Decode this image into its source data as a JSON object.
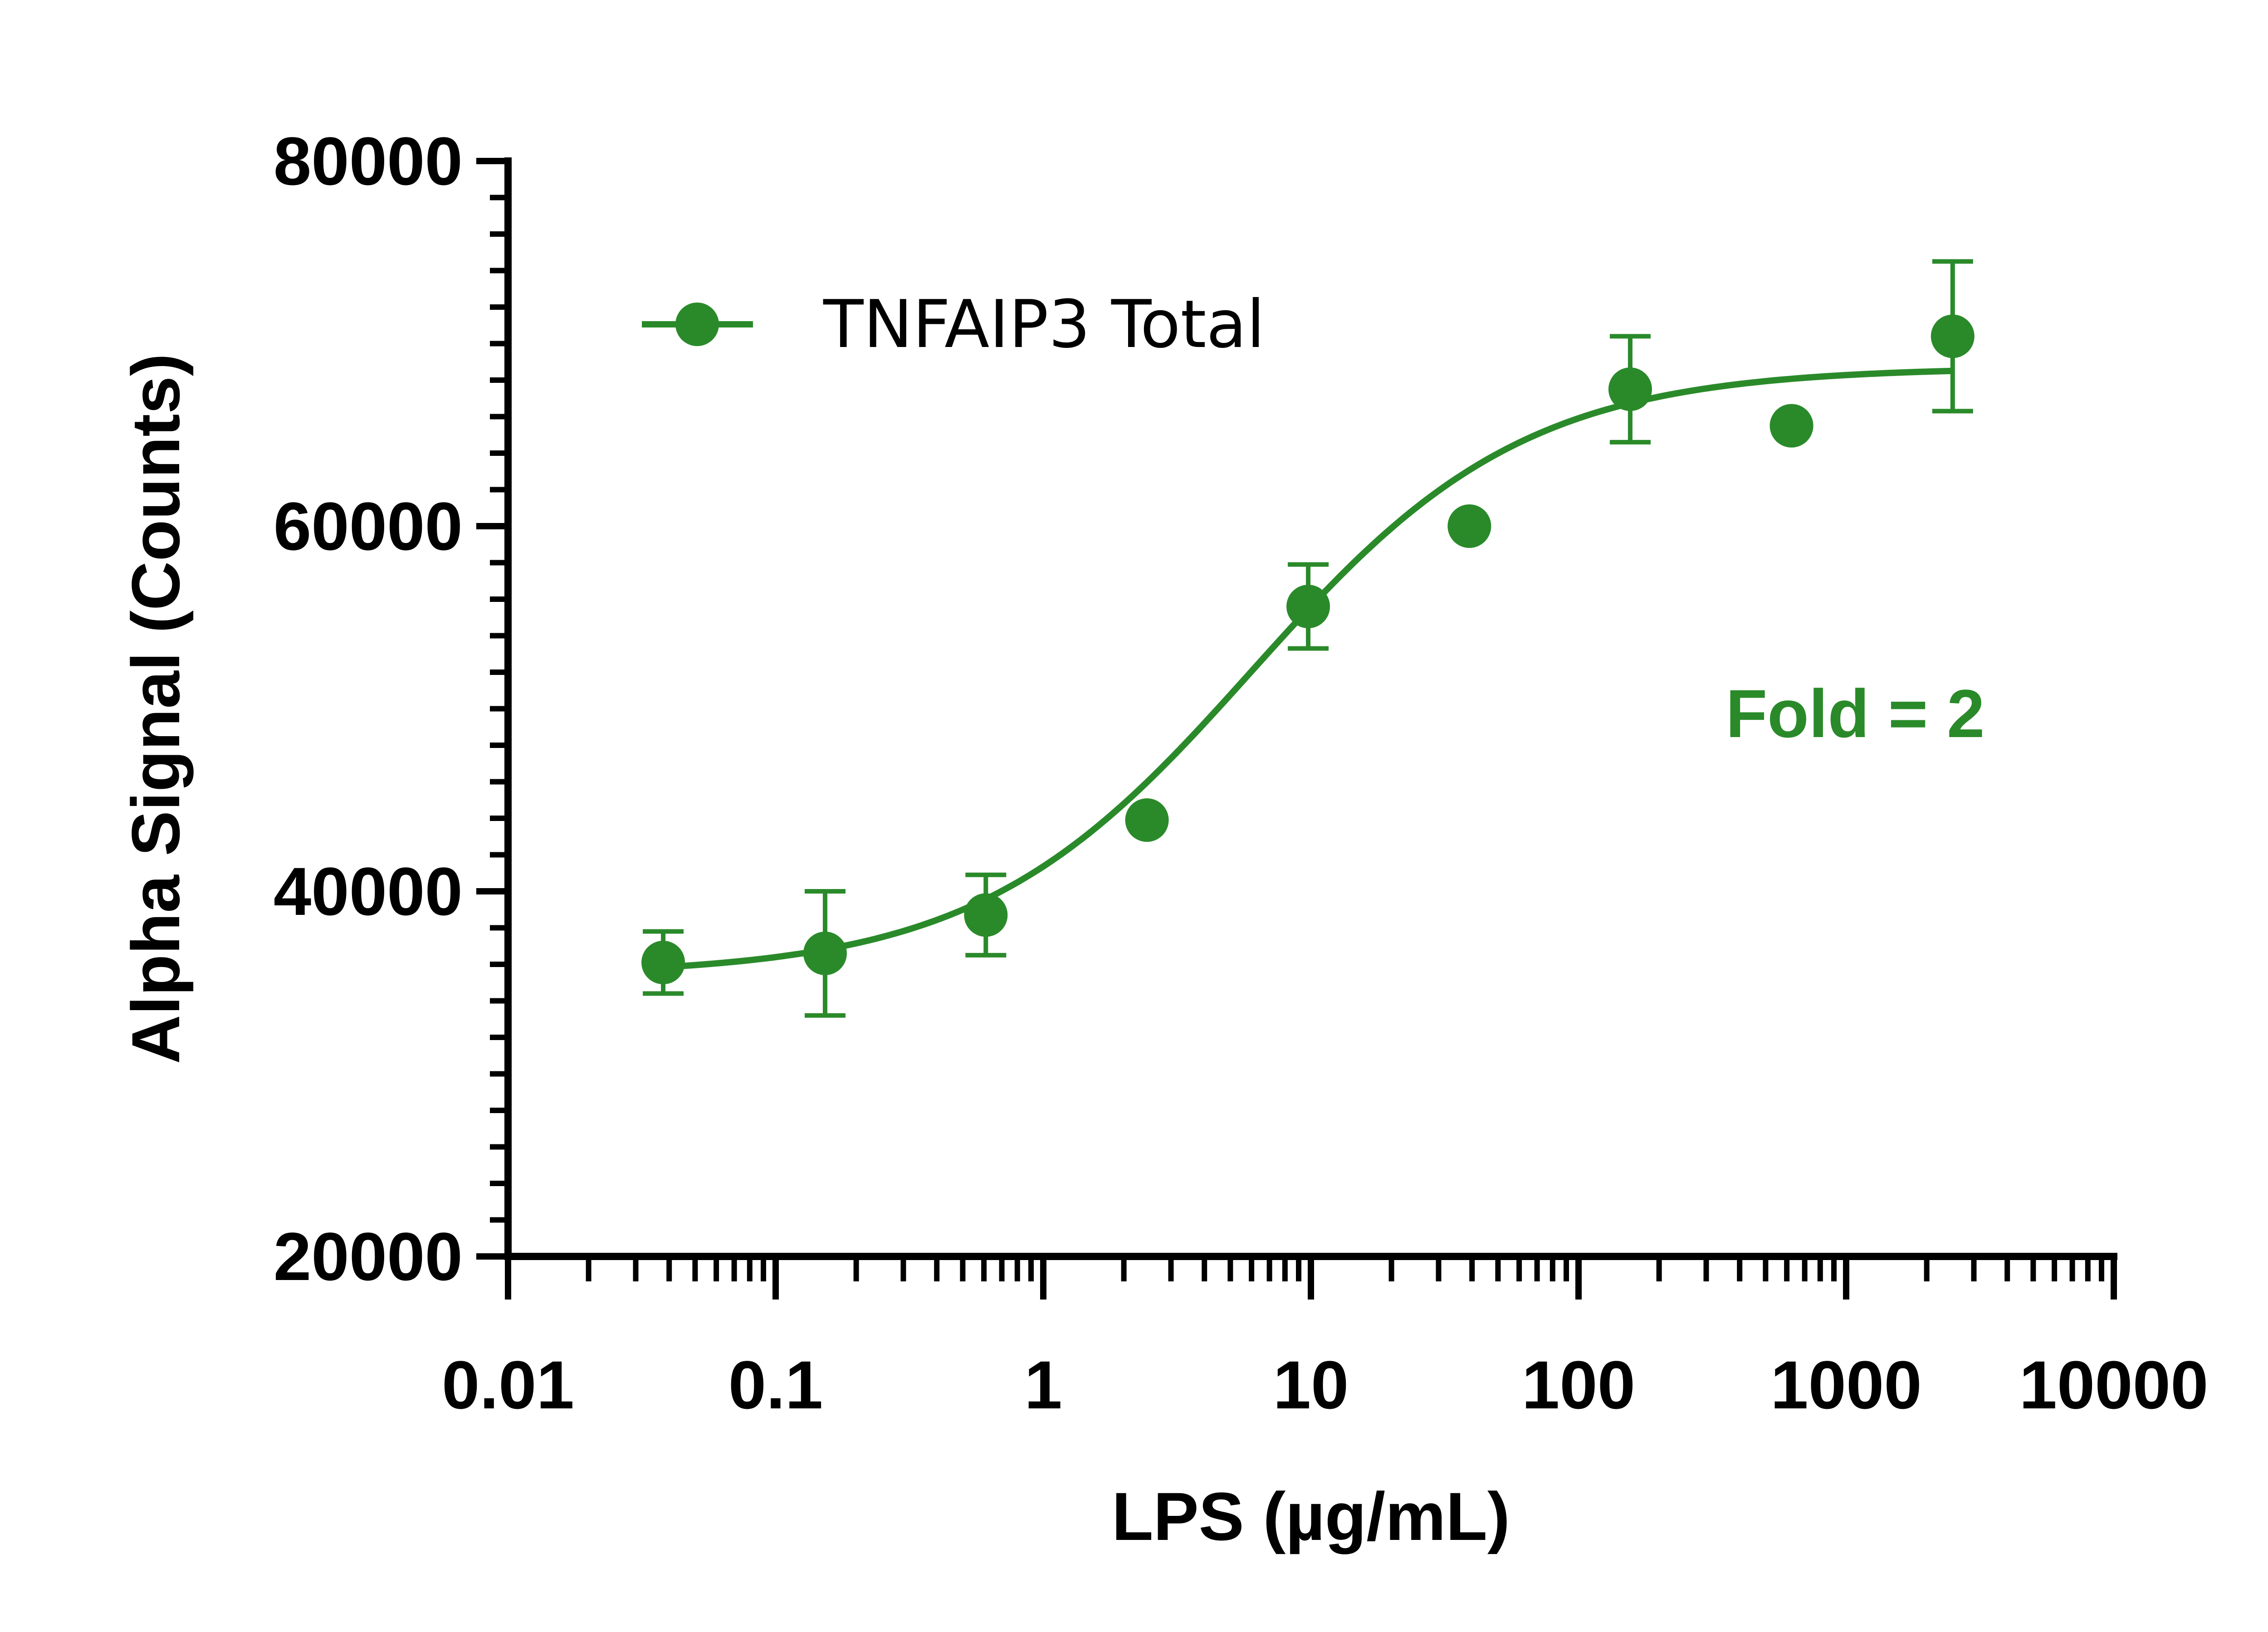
{
  "chart_data": {
    "type": "scatter",
    "x_scale": "log",
    "xlabel": "LPS (µg/mL)",
    "ylabel": "Alpha Signal (Counts)",
    "xlim": [
      0.01,
      10000
    ],
    "ylim": [
      20000,
      80000
    ],
    "x_tick_labels": [
      "0.01",
      "0.1",
      "1",
      "10",
      "100",
      "1000",
      "10000"
    ],
    "x_tick_values": [
      0.01,
      0.1,
      1,
      10,
      100,
      1000,
      10000
    ],
    "y_tick_labels": [
      "20000",
      "40000",
      "60000",
      "80000"
    ],
    "y_tick_values": [
      20000,
      40000,
      60000,
      80000
    ],
    "grid": false,
    "legend_position": "top-left",
    "series": [
      {
        "name": "TNFAIP3 Total",
        "color": "#2a8a2a",
        "x": [
          0.038,
          0.153,
          0.61,
          2.44,
          9.77,
          39.1,
          156,
          625,
          2500
        ],
        "y": [
          36100,
          36600,
          38700,
          43900,
          55600,
          60000,
          67500,
          65500,
          70400
        ],
        "error": [
          1700,
          3400,
          2200,
          null,
          2300,
          null,
          2900,
          null,
          4100
        ],
        "fit": {
          "bottom": 35400,
          "top": 68700,
          "ec50": 6,
          "hill": 0.85
        }
      }
    ],
    "annotations": [
      "Fold = 2"
    ]
  }
}
